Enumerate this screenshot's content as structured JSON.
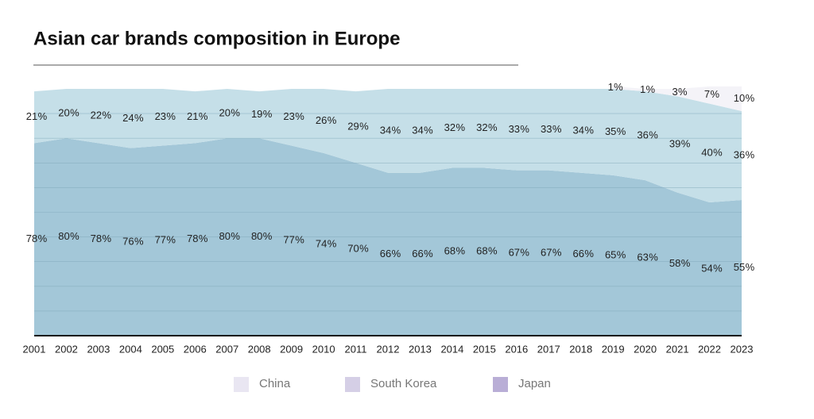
{
  "chart_data": {
    "type": "stacked-area",
    "title": "Asian car brands composition in Europe",
    "categories": [
      "2001",
      "2002",
      "2003",
      "2004",
      "2005",
      "2006",
      "2007",
      "2008",
      "2009",
      "2010",
      "2011",
      "2012",
      "2013",
      "2014",
      "2015",
      "2016",
      "2017",
      "2018",
      "2019",
      "2020",
      "2021",
      "2022",
      "2023"
    ],
    "series": [
      {
        "name": "Japan",
        "color": "#a3c7d8",
        "legend_color": "#b9aed6",
        "values": [
          78,
          80,
          78,
          76,
          77,
          78,
          80,
          80,
          77,
          74,
          70,
          66,
          66,
          68,
          68,
          67,
          67,
          66,
          65,
          63,
          58,
          54,
          55
        ]
      },
      {
        "name": "South Korea",
        "color": "#c5dfe8",
        "legend_color": "#d5cfe6",
        "values": [
          21,
          20,
          22,
          24,
          23,
          21,
          20,
          19,
          23,
          26,
          29,
          34,
          34,
          32,
          32,
          33,
          33,
          34,
          35,
          36,
          39,
          40,
          36
        ]
      },
      {
        "name": "China",
        "color": "#f4f3f8",
        "legend_color": "#e9e6f2",
        "values": [
          null,
          null,
          null,
          null,
          null,
          null,
          null,
          null,
          null,
          null,
          null,
          null,
          null,
          null,
          null,
          null,
          null,
          null,
          1,
          1,
          3,
          7,
          10
        ]
      }
    ],
    "value_labels_suffix_free": true,
    "ylim": [
      0,
      100
    ],
    "yticks": [
      0,
      10,
      20,
      30,
      40,
      50,
      60,
      70,
      80,
      90,
      100
    ],
    "grid": true
  }
}
